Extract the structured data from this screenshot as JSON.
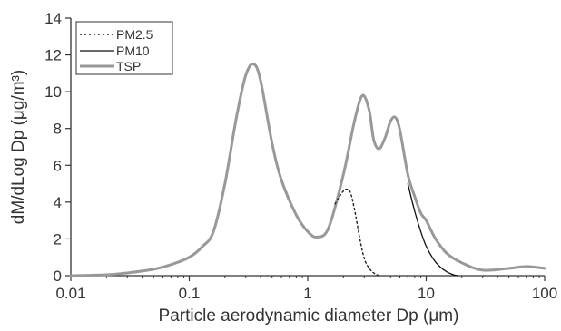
{
  "chart_data": {
    "type": "line",
    "title": "",
    "xlabel": "Particle aerodynamic diameter Dp (μm)",
    "ylabel": "dM/dLog Dp (μg/m³)",
    "x_scale": "log",
    "xlim": [
      0.01,
      100
    ],
    "ylim": [
      0,
      14
    ],
    "x_tick_labels": [
      "0.01",
      "0.1",
      "1",
      "10",
      "100"
    ],
    "x_tick_values": [
      0.01,
      0.1,
      1,
      10,
      100
    ],
    "y_tick_labels": [
      "0",
      "2",
      "4",
      "6",
      "8",
      "10",
      "12",
      "14"
    ],
    "y_tick_values": [
      0,
      2,
      4,
      6,
      8,
      10,
      12,
      14
    ],
    "grid": false,
    "legend_position": "top-left",
    "legend": [
      "PM2.5",
      "PM10",
      "TSP"
    ],
    "series": [
      {
        "name": "PM2.5",
        "line_style": "dotted",
        "color": "#222222",
        "x": [
          1.7,
          1.85,
          2.0,
          2.15,
          2.3,
          2.5,
          2.7,
          2.9,
          3.1,
          3.4,
          3.7,
          4.0
        ],
        "y": [
          3.9,
          4.3,
          4.6,
          4.7,
          4.5,
          3.5,
          2.3,
          1.3,
          0.7,
          0.3,
          0.1,
          0.0
        ]
      },
      {
        "name": "PM10",
        "line_style": "solid",
        "color": "#111111",
        "x": [
          7.0,
          8.0,
          9.0,
          10.0,
          11.5,
          13.0,
          15.0,
          17.0,
          18.5
        ],
        "y": [
          5.0,
          3.5,
          2.4,
          1.6,
          0.9,
          0.5,
          0.2,
          0.05,
          0.0
        ]
      },
      {
        "name": "TSP",
        "line_style": "solid",
        "color": "#999999",
        "x": [
          0.01,
          0.02,
          0.03,
          0.05,
          0.07,
          0.1,
          0.13,
          0.16,
          0.2,
          0.25,
          0.3,
          0.35,
          0.4,
          0.5,
          0.6,
          0.8,
          1.0,
          1.2,
          1.5,
          2.0,
          2.5,
          2.9,
          3.3,
          3.6,
          4.0,
          4.5,
          5.0,
          5.5,
          6.0,
          7.0,
          8.0,
          9.0,
          10.0,
          12.0,
          15.0,
          20.0,
          30.0,
          50.0,
          70.0,
          100.0
        ],
        "y": [
          0.0,
          0.05,
          0.15,
          0.35,
          0.6,
          1.0,
          1.6,
          2.4,
          5.0,
          8.6,
          10.9,
          11.5,
          10.6,
          7.2,
          5.2,
          3.3,
          2.4,
          2.1,
          2.6,
          5.5,
          8.5,
          9.8,
          9.0,
          7.4,
          6.9,
          7.5,
          8.4,
          8.6,
          7.9,
          5.5,
          4.3,
          3.4,
          3.0,
          2.0,
          1.2,
          0.7,
          0.3,
          0.4,
          0.5,
          0.4
        ]
      }
    ]
  }
}
